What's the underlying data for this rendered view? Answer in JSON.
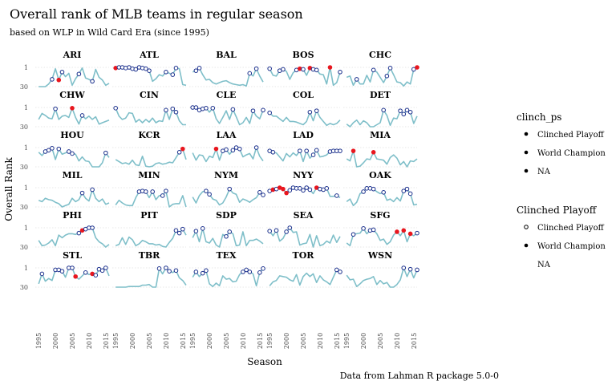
{
  "chart_data": {
    "type": "line",
    "title": "Overall rank of MLB teams in regular season",
    "subtitle": "based on WLP in Wild Card Era (since 1995)",
    "xlabel": "Season",
    "ylabel": "Overall Rank",
    "caption": "Data from Lahman R package 5.0-0",
    "x_ticks": [
      1995,
      2000,
      2005,
      2010,
      2015
    ],
    "y_ticks": [
      1,
      30
    ],
    "xlim": [
      1994,
      2016
    ],
    "ylim": [
      1,
      30
    ],
    "colors": {
      "line": "#7fbfc9",
      "clinched_fill": "#ffffff",
      "clinched_stroke": "#1a2f8c",
      "champion": "#e8161e",
      "grid": "#d0d0d0"
    },
    "legends": [
      {
        "title": "clinch_ps",
        "entries": [
          "Clinched Playoff",
          "World Champion",
          "NA"
        ]
      },
      {
        "title": "Clinched Playoff",
        "entries": [
          "Clinched Playoff",
          "World Champion",
          "NA"
        ]
      }
    ],
    "teams": [
      {
        "name": "ARI",
        "ranks": [
          30,
          30,
          30,
          26,
          19,
          3,
          20,
          8,
          15,
          10,
          28,
          18,
          11,
          2,
          17,
          19,
          22,
          4,
          16,
          20,
          28,
          25
        ],
        "playoffs": [
          1999,
          2001,
          2002,
          2007,
          2011
        ],
        "champions": [
          2001
        ]
      },
      {
        "name": "ATL",
        "ranks": [
          2,
          1,
          1,
          2,
          1,
          3,
          4,
          1,
          2,
          3,
          6,
          22,
          18,
          12,
          14,
          8,
          10,
          12,
          2,
          3,
          27,
          28
        ],
        "playoffs": [
          1995,
          1996,
          1997,
          1998,
          1999,
          2000,
          2001,
          2002,
          2003,
          2004,
          2005,
          2010,
          2012,
          2013
        ],
        "champions": [
          1995
        ]
      },
      {
        "name": "BAL",
        "ranks": [
          8,
          6,
          2,
          12,
          20,
          19,
          24,
          26,
          24,
          22,
          21,
          24,
          26,
          27,
          28,
          27,
          29,
          10,
          14,
          3,
          14,
          23
        ],
        "playoffs": [
          1996,
          1997,
          2012,
          2014
        ],
        "champions": []
      },
      {
        "name": "BOS",
        "ranks": [
          3,
          13,
          14,
          6,
          4,
          7,
          19,
          9,
          5,
          3,
          4,
          13,
          2,
          4,
          5,
          11,
          12,
          26,
          1,
          28,
          24,
          8
        ],
        "playoffs": [
          1995,
          1998,
          1999,
          2003,
          2004,
          2005,
          2007,
          2008,
          2009,
          2013,
          2016
        ],
        "champions": [
          2004,
          2007,
          2013
        ]
      },
      {
        "name": "CHC",
        "ranks": [
          16,
          14,
          28,
          19,
          26,
          26,
          13,
          23,
          5,
          8,
          16,
          24,
          14,
          2,
          12,
          23,
          24,
          29,
          23,
          26,
          4,
          1
        ],
        "playoffs": [
          1998,
          2003,
          2007,
          2008,
          2015,
          2016
        ],
        "champions": [
          2016
        ]
      },
      {
        "name": "CHW",
        "ranks": [
          19,
          10,
          13,
          17,
          18,
          3,
          19,
          14,
          13,
          16,
          2,
          16,
          26,
          13,
          18,
          14,
          19,
          15,
          26,
          24,
          22,
          20
        ],
        "playoffs": [
          2000,
          2005,
          2008
        ],
        "champions": [
          2005
        ]
      },
      {
        "name": "CIN",
        "ranks": [
          2,
          14,
          19,
          17,
          9,
          10,
          23,
          19,
          24,
          19,
          23,
          17,
          24,
          21,
          22,
          5,
          19,
          3,
          8,
          21,
          27,
          27
        ],
        "playoffs": [
          1995,
          2010,
          2012,
          2013
        ],
        "champions": []
      },
      {
        "name": "CLE",
        "ranks": [
          1,
          1,
          5,
          3,
          2,
          8,
          2,
          18,
          25,
          16,
          6,
          19,
          4,
          15,
          27,
          24,
          16,
          25,
          6,
          14,
          18,
          5
        ],
        "playoffs": [
          1995,
          1996,
          1997,
          1998,
          1999,
          2001,
          2007,
          2013,
          2016
        ],
        "champions": []
      },
      {
        "name": "COL",
        "ranks": [
          9,
          14,
          14,
          18,
          22,
          16,
          22,
          22,
          23,
          25,
          27,
          22,
          8,
          21,
          6,
          16,
          22,
          28,
          25,
          27,
          25,
          20
        ],
        "playoffs": [
          1995,
          2007,
          2009
        ],
        "champions": []
      },
      {
        "name": "DET",
        "ranks": [
          26,
          30,
          24,
          20,
          27,
          21,
          24,
          30,
          30,
          27,
          24,
          5,
          13,
          28,
          17,
          18,
          6,
          11,
          5,
          8,
          25,
          14
        ],
        "playoffs": [
          2006,
          2011,
          2012,
          2013,
          2014
        ],
        "champions": []
      },
      {
        "name": "HOU",
        "ranks": [
          8,
          13,
          7,
          5,
          2,
          19,
          3,
          11,
          9,
          7,
          10,
          11,
          21,
          15,
          21,
          22,
          30,
          30,
          30,
          24,
          9,
          16
        ],
        "playoffs": [
          1997,
          1998,
          1999,
          2001,
          2004,
          2005,
          2015
        ],
        "champions": []
      },
      {
        "name": "KCR",
        "ranks": [
          19,
          22,
          25,
          24,
          26,
          20,
          27,
          28,
          14,
          29,
          30,
          29,
          25,
          24,
          26,
          25,
          23,
          24,
          16,
          8,
          3,
          19
        ],
        "playoffs": [
          2014,
          2015
        ],
        "champions": [
          2015
        ]
      },
      {
        "name": "LAA",
        "ranks": [
          9,
          20,
          12,
          13,
          22,
          14,
          16,
          3,
          20,
          6,
          4,
          11,
          5,
          1,
          3,
          15,
          12,
          10,
          18,
          1,
          14,
          21
        ],
        "playoffs": [
          2002,
          2004,
          2005,
          2007,
          2008,
          2009,
          2014
        ],
        "champions": [
          2002
        ]
      },
      {
        "name": "LAD",
        "ranks": [
          6,
          8,
          9,
          15,
          21,
          10,
          15,
          9,
          13,
          6,
          22,
          6,
          17,
          12,
          5,
          15,
          14,
          12,
          7,
          6,
          6,
          6
        ],
        "playoffs": [
          1995,
          1996,
          2004,
          2006,
          2008,
          2009,
          2013,
          2014,
          2015,
          2016
        ],
        "champions": []
      },
      {
        "name": "MIA",
        "ranks": [
          18,
          21,
          6,
          30,
          29,
          24,
          18,
          19,
          8,
          18,
          19,
          20,
          26,
          16,
          12,
          17,
          27,
          22,
          30,
          21,
          22,
          18
        ],
        "playoffs": [
          1997,
          2003
        ],
        "champions": [
          1997,
          2003
        ]
      },
      {
        "name": "MIL",
        "ranks": [
          20,
          22,
          17,
          19,
          20,
          23,
          25,
          30,
          28,
          26,
          17,
          22,
          19,
          9,
          17,
          21,
          4,
          17,
          22,
          18,
          26,
          24
        ],
        "playoffs": [
          2008,
          2011
        ],
        "champions": []
      },
      {
        "name": "MIN",
        "ranks": [
          27,
          20,
          24,
          27,
          28,
          28,
          16,
          7,
          6,
          7,
          16,
          7,
          19,
          13,
          13,
          6,
          30,
          26,
          25,
          25,
          13,
          30
        ],
        "playoffs": [
          2002,
          2003,
          2004,
          2006,
          2009,
          2010
        ],
        "champions": []
      },
      {
        "name": "NYM",
        "ranks": [
          15,
          24,
          13,
          7,
          6,
          11,
          18,
          20,
          27,
          24,
          15,
          3,
          9,
          11,
          23,
          18,
          20,
          23,
          19,
          16,
          8,
          12
        ],
        "playoffs": [
          1999,
          2000,
          2006,
          2015,
          2016
        ],
        "champions": []
      },
      {
        "name": "NYY",
        "ranks": [
          6,
          4,
          3,
          1,
          3,
          9,
          5,
          1,
          2,
          2,
          5,
          1,
          4,
          10,
          1,
          3,
          4,
          2,
          14,
          14,
          13,
          16
        ],
        "playoffs": [
          1995,
          1996,
          1997,
          1998,
          1999,
          2000,
          2001,
          2002,
          2003,
          2004,
          2005,
          2006,
          2007,
          2009,
          2010,
          2011,
          2012,
          2015
        ],
        "champions": [
          1996,
          1998,
          1999,
          2000,
          2009
        ]
      },
      {
        "name": "OAK",
        "ranks": [
          22,
          18,
          28,
          23,
          10,
          7,
          2,
          2,
          3,
          7,
          10,
          8,
          20,
          18,
          22,
          16,
          21,
          6,
          3,
          10,
          27,
          26
        ],
        "playoffs": [
          2000,
          2001,
          2002,
          2003,
          2006,
          2012,
          2013,
          2014
        ],
        "champions": []
      },
      {
        "name": "PHI",
        "ranks": [
          20,
          28,
          27,
          24,
          19,
          28,
          12,
          16,
          12,
          10,
          10,
          11,
          9,
          5,
          3,
          1,
          1,
          16,
          22,
          25,
          30,
          26
        ],
        "playoffs": [
          2007,
          2008,
          2009,
          2010,
          2011
        ],
        "champions": [
          2008
        ]
      },
      {
        "name": "PIT",
        "ranks": [
          28,
          26,
          16,
          26,
          15,
          19,
          28,
          25,
          20,
          22,
          25,
          25,
          27,
          26,
          29,
          30,
          23,
          17,
          5,
          9,
          3,
          12
        ],
        "playoffs": [
          2013,
          2014,
          2015
        ],
        "champions": []
      },
      {
        "name": "SDP",
        "ranks": [
          16,
          6,
          22,
          2,
          22,
          24,
          17,
          27,
          30,
          11,
          14,
          7,
          10,
          28,
          27,
          7,
          28,
          20,
          20,
          18,
          21,
          25
        ],
        "playoffs": [
          1996,
          1998,
          2005,
          2006
        ],
        "champions": []
      },
      {
        "name": "SEA",
        "ranks": [
          6,
          13,
          5,
          21,
          17,
          7,
          1,
          8,
          7,
          27,
          25,
          24,
          11,
          30,
          13,
          28,
          26,
          21,
          24,
          12,
          23,
          14
        ],
        "playoffs": [
          1995,
          1997,
          2000,
          2001
        ],
        "champions": []
      },
      {
        "name": "SFG",
        "ranks": [
          24,
          28,
          11,
          10,
          9,
          2,
          10,
          5,
          4,
          10,
          20,
          18,
          26,
          22,
          12,
          7,
          13,
          5,
          22,
          10,
          13,
          9
        ],
        "playoffs": [
          1997,
          2000,
          2002,
          2003,
          2010,
          2012,
          2014,
          2016
        ],
        "champions": [
          2010,
          2012,
          2014
        ]
      },
      {
        "name": "STL",
        "ranks": [
          25,
          10,
          21,
          17,
          20,
          4,
          4,
          6,
          15,
          1,
          1,
          14,
          18,
          13,
          8,
          11,
          10,
          12,
          3,
          5,
          1,
          13
        ],
        "playoffs": [
          1996,
          2000,
          2001,
          2002,
          2004,
          2005,
          2006,
          2009,
          2011,
          2012,
          2013,
          2014,
          2015
        ],
        "champions": [
          2006,
          2011
        ]
      },
      {
        "name": "TBR",
        "ranks": [
          30,
          30,
          30,
          30,
          29,
          29,
          29,
          29,
          27,
          27,
          26,
          30,
          30,
          2,
          10,
          1,
          6,
          8,
          5,
          16,
          20,
          27
        ],
        "playoffs": [
          2008,
          2010,
          2011,
          2013
        ],
        "champions": []
      },
      {
        "name": "TEX",
        "ranks": [
          15,
          7,
          14,
          9,
          5,
          25,
          29,
          24,
          28,
          13,
          18,
          17,
          22,
          21,
          11,
          7,
          4,
          7,
          10,
          28,
          8,
          2
        ],
        "playoffs": [
          1996,
          1998,
          1999,
          2010,
          2011,
          2012,
          2015,
          2016
        ],
        "champions": []
      },
      {
        "name": "TOR",
        "ranks": [
          28,
          22,
          20,
          13,
          14,
          15,
          19,
          21,
          11,
          27,
          14,
          9,
          14,
          10,
          23,
          13,
          19,
          22,
          26,
          15,
          4,
          7
        ],
        "playoffs": [
          2015,
          2016
        ],
        "champions": []
      },
      {
        "name": "WSN",
        "ranks": [
          12,
          19,
          18,
          29,
          25,
          20,
          18,
          17,
          14,
          26,
          20,
          25,
          23,
          30,
          30,
          26,
          19,
          1,
          14,
          3,
          16,
          4
        ],
        "playoffs": [
          2012,
          2014,
          2016
        ],
        "champions": []
      }
    ]
  }
}
